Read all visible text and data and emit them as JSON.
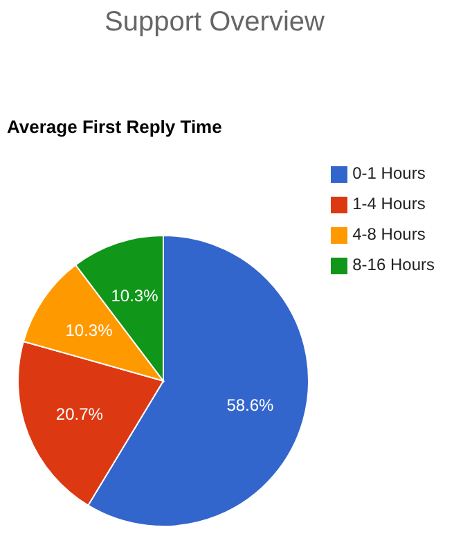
{
  "chart_data": {
    "type": "pie",
    "title": "Support Overview",
    "subtitle": "Average First Reply Time",
    "categories": [
      "0-1 Hours",
      "1-4 Hours",
      "4-8 Hours",
      "8-16 Hours"
    ],
    "values": [
      58.6,
      20.7,
      10.3,
      10.3
    ],
    "colors": [
      "#3366cc",
      "#dc3912",
      "#ff9900",
      "#109618"
    ],
    "value_labels": [
      "58.6%",
      "20.7%",
      "10.3%",
      "10.3%"
    ],
    "legend": "right"
  }
}
